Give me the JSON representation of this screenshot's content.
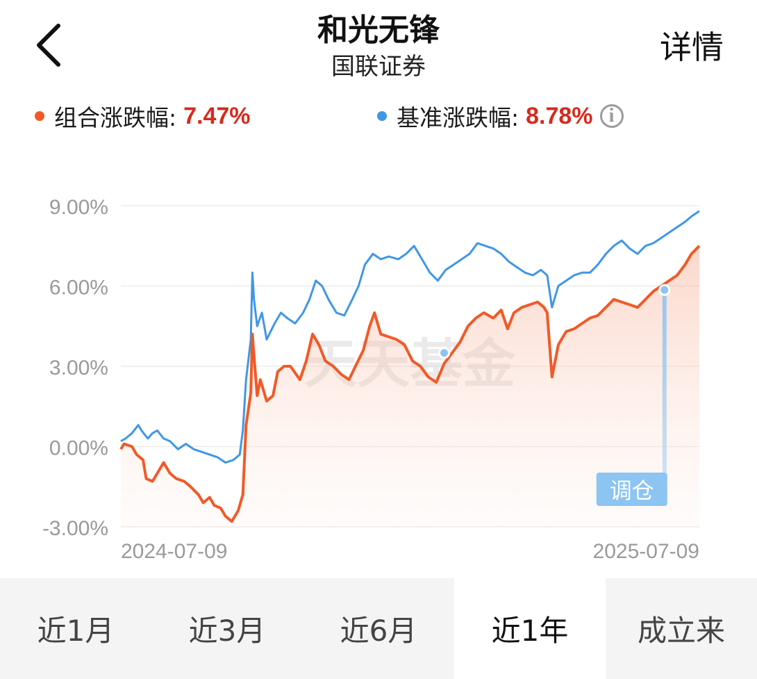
{
  "header": {
    "title": "和光无锋",
    "subtitle": "国联证券",
    "detail_label": "详情"
  },
  "legend": {
    "portfolio": {
      "label": "组合涨跌幅:",
      "value": "7.47%",
      "color": "#f05a28"
    },
    "benchmark": {
      "label": "基准涨跌幅:",
      "value": "8.78%",
      "color": "#3f97e6"
    },
    "info_icon": "info-circle-icon"
  },
  "watermark": "天天基金",
  "tabs": [
    {
      "label": "近1月",
      "active": false
    },
    {
      "label": "近3月",
      "active": false
    },
    {
      "label": "近6月",
      "active": false
    },
    {
      "label": "近1年",
      "active": true
    },
    {
      "label": "成立来",
      "active": false
    }
  ],
  "chart_data": {
    "type": "line",
    "x_start": "2024-07-09",
    "x_end": "2025-07-09",
    "xtick_labels": [
      "2024-07-09",
      "2025-07-09"
    ],
    "ytick_labels": [
      "9.00%",
      "6.00%",
      "3.00%",
      "0.00%",
      "-3.00%"
    ],
    "ylim": [
      -3,
      9
    ],
    "grid": true,
    "marker_label": "调仓",
    "series": [
      {
        "name": "组合涨跌幅",
        "color": "#f05a28",
        "points": [
          [
            "2024-07-09",
            -0.1
          ],
          [
            "2024-07-11",
            0.1
          ],
          [
            "2024-07-16",
            0.0
          ],
          [
            "2024-07-19",
            -0.3
          ],
          [
            "2024-07-23",
            -0.5
          ],
          [
            "2024-07-25",
            -1.2
          ],
          [
            "2024-07-29",
            -1.3
          ],
          [
            "2024-08-01",
            -1.0
          ],
          [
            "2024-08-05",
            -0.6
          ],
          [
            "2024-08-07",
            -0.8
          ],
          [
            "2024-08-09",
            -1.0
          ],
          [
            "2024-08-13",
            -1.2
          ],
          [
            "2024-08-18",
            -1.3
          ],
          [
            "2024-08-22",
            -1.5
          ],
          [
            "2024-08-27",
            -1.8
          ],
          [
            "2024-08-30",
            -2.1
          ],
          [
            "2024-09-03",
            -1.9
          ],
          [
            "2024-09-06",
            -2.2
          ],
          [
            "2024-09-10",
            -2.3
          ],
          [
            "2024-09-13",
            -2.6
          ],
          [
            "2024-09-17",
            -2.8
          ],
          [
            "2024-09-19",
            -2.6
          ],
          [
            "2024-09-21",
            -2.4
          ],
          [
            "2024-09-24",
            -1.8
          ],
          [
            "2024-09-26",
            0.8
          ],
          [
            "2024-09-29",
            2.0
          ],
          [
            "2024-09-30",
            4.2
          ],
          [
            "2024-10-01",
            3.4
          ],
          [
            "2024-10-03",
            1.9
          ],
          [
            "2024-10-05",
            2.5
          ],
          [
            "2024-10-07",
            2.1
          ],
          [
            "2024-10-09",
            1.7
          ],
          [
            "2024-10-13",
            1.9
          ],
          [
            "2024-10-16",
            2.8
          ],
          [
            "2024-10-20",
            3.0
          ],
          [
            "2024-10-24",
            3.0
          ],
          [
            "2024-10-30",
            2.5
          ],
          [
            "2024-11-03",
            3.2
          ],
          [
            "2024-11-07",
            4.2
          ],
          [
            "2024-11-11",
            3.8
          ],
          [
            "2024-11-15",
            3.2
          ],
          [
            "2024-11-20",
            3.0
          ],
          [
            "2024-11-25",
            2.7
          ],
          [
            "2024-11-30",
            2.5
          ],
          [
            "2024-12-04",
            3.0
          ],
          [
            "2024-12-09",
            3.6
          ],
          [
            "2024-12-13",
            4.5
          ],
          [
            "2024-12-16",
            5.0
          ],
          [
            "2024-12-20",
            4.2
          ],
          [
            "2024-12-25",
            4.1
          ],
          [
            "2024-12-30",
            4.0
          ],
          [
            "2025-01-04",
            3.8
          ],
          [
            "2025-01-09",
            3.2
          ],
          [
            "2025-01-14",
            3.0
          ],
          [
            "2025-01-19",
            2.6
          ],
          [
            "2025-01-24",
            2.4
          ],
          [
            "2025-01-29",
            3.1
          ],
          [
            "2025-02-03",
            3.5
          ],
          [
            "2025-02-08",
            3.9
          ],
          [
            "2025-02-13",
            4.5
          ],
          [
            "2025-02-18",
            4.8
          ],
          [
            "2025-02-23",
            5.0
          ],
          [
            "2025-03-01",
            4.8
          ],
          [
            "2025-03-06",
            5.1
          ],
          [
            "2025-03-10",
            4.4
          ],
          [
            "2025-03-14",
            5.0
          ],
          [
            "2025-03-19",
            5.2
          ],
          [
            "2025-03-24",
            5.3
          ],
          [
            "2025-03-29",
            5.4
          ],
          [
            "2025-04-02",
            5.2
          ],
          [
            "2025-04-04",
            5.0
          ],
          [
            "2025-04-07",
            2.6
          ],
          [
            "2025-04-11",
            3.8
          ],
          [
            "2025-04-16",
            4.3
          ],
          [
            "2025-04-21",
            4.4
          ],
          [
            "2025-04-26",
            4.6
          ],
          [
            "2025-05-01",
            4.8
          ],
          [
            "2025-05-06",
            4.9
          ],
          [
            "2025-05-11",
            5.2
          ],
          [
            "2025-05-16",
            5.5
          ],
          [
            "2025-05-21",
            5.4
          ],
          [
            "2025-05-26",
            5.3
          ],
          [
            "2025-05-31",
            5.2
          ],
          [
            "2025-06-05",
            5.5
          ],
          [
            "2025-06-10",
            5.8
          ],
          [
            "2025-06-15",
            6.0
          ],
          [
            "2025-06-20",
            6.2
          ],
          [
            "2025-06-25",
            6.4
          ],
          [
            "2025-06-30",
            6.8
          ],
          [
            "2025-07-04",
            7.2
          ],
          [
            "2025-07-09",
            7.5
          ]
        ]
      },
      {
        "name": "基准涨跌幅",
        "color": "#3f97e6",
        "points": [
          [
            "2024-07-09",
            0.2
          ],
          [
            "2024-07-12",
            0.3
          ],
          [
            "2024-07-16",
            0.5
          ],
          [
            "2024-07-20",
            0.8
          ],
          [
            "2024-07-22",
            0.6
          ],
          [
            "2024-07-26",
            0.3
          ],
          [
            "2024-07-29",
            0.5
          ],
          [
            "2024-08-01",
            0.6
          ],
          [
            "2024-08-05",
            0.3
          ],
          [
            "2024-08-09",
            0.2
          ],
          [
            "2024-08-14",
            -0.1
          ],
          [
            "2024-08-19",
            0.1
          ],
          [
            "2024-08-24",
            -0.1
          ],
          [
            "2024-08-29",
            -0.2
          ],
          [
            "2024-09-03",
            -0.3
          ],
          [
            "2024-09-08",
            -0.4
          ],
          [
            "2024-09-13",
            -0.6
          ],
          [
            "2024-09-18",
            -0.5
          ],
          [
            "2024-09-22",
            -0.3
          ],
          [
            "2024-09-24",
            0.6
          ],
          [
            "2024-09-26",
            2.5
          ],
          [
            "2024-09-29",
            4.0
          ],
          [
            "2024-09-30",
            6.5
          ],
          [
            "2024-10-01",
            5.5
          ],
          [
            "2024-10-03",
            4.5
          ],
          [
            "2024-10-06",
            5.0
          ],
          [
            "2024-10-09",
            4.0
          ],
          [
            "2024-10-14",
            4.6
          ],
          [
            "2024-10-18",
            5.0
          ],
          [
            "2024-10-22",
            4.8
          ],
          [
            "2024-10-27",
            4.6
          ],
          [
            "2024-11-01",
            5.0
          ],
          [
            "2024-11-05",
            5.5
          ],
          [
            "2024-11-09",
            6.2
          ],
          [
            "2024-11-13",
            6.0
          ],
          [
            "2024-11-17",
            5.5
          ],
          [
            "2024-11-22",
            5.0
          ],
          [
            "2024-11-27",
            4.9
          ],
          [
            "2024-12-02",
            5.5
          ],
          [
            "2024-12-06",
            6.0
          ],
          [
            "2024-12-10",
            6.8
          ],
          [
            "2024-12-15",
            7.2
          ],
          [
            "2024-12-20",
            7.0
          ],
          [
            "2024-12-25",
            7.1
          ],
          [
            "2024-12-31",
            7.0
          ],
          [
            "2025-01-05",
            7.2
          ],
          [
            "2025-01-10",
            7.5
          ],
          [
            "2025-01-15",
            7.0
          ],
          [
            "2025-01-20",
            6.5
          ],
          [
            "2025-01-25",
            6.2
          ],
          [
            "2025-01-30",
            6.6
          ],
          [
            "2025-02-04",
            6.8
          ],
          [
            "2025-02-09",
            7.0
          ],
          [
            "2025-02-14",
            7.2
          ],
          [
            "2025-02-19",
            7.6
          ],
          [
            "2025-02-24",
            7.5
          ],
          [
            "2025-03-01",
            7.4
          ],
          [
            "2025-03-06",
            7.2
          ],
          [
            "2025-03-11",
            6.9
          ],
          [
            "2025-03-16",
            6.7
          ],
          [
            "2025-03-21",
            6.5
          ],
          [
            "2025-03-26",
            6.4
          ],
          [
            "2025-03-31",
            6.6
          ],
          [
            "2025-04-04",
            6.4
          ],
          [
            "2025-04-07",
            5.2
          ],
          [
            "2025-04-11",
            6.0
          ],
          [
            "2025-04-16",
            6.2
          ],
          [
            "2025-04-21",
            6.4
          ],
          [
            "2025-04-26",
            6.5
          ],
          [
            "2025-05-01",
            6.5
          ],
          [
            "2025-05-06",
            6.8
          ],
          [
            "2025-05-11",
            7.2
          ],
          [
            "2025-05-16",
            7.5
          ],
          [
            "2025-05-21",
            7.7
          ],
          [
            "2025-05-26",
            7.4
          ],
          [
            "2025-05-31",
            7.2
          ],
          [
            "2025-06-05",
            7.5
          ],
          [
            "2025-06-10",
            7.6
          ],
          [
            "2025-06-15",
            7.8
          ],
          [
            "2025-06-20",
            8.0
          ],
          [
            "2025-06-25",
            8.2
          ],
          [
            "2025-06-30",
            8.4
          ],
          [
            "2025-07-04",
            8.6
          ],
          [
            "2025-07-09",
            8.8
          ]
        ]
      }
    ]
  }
}
